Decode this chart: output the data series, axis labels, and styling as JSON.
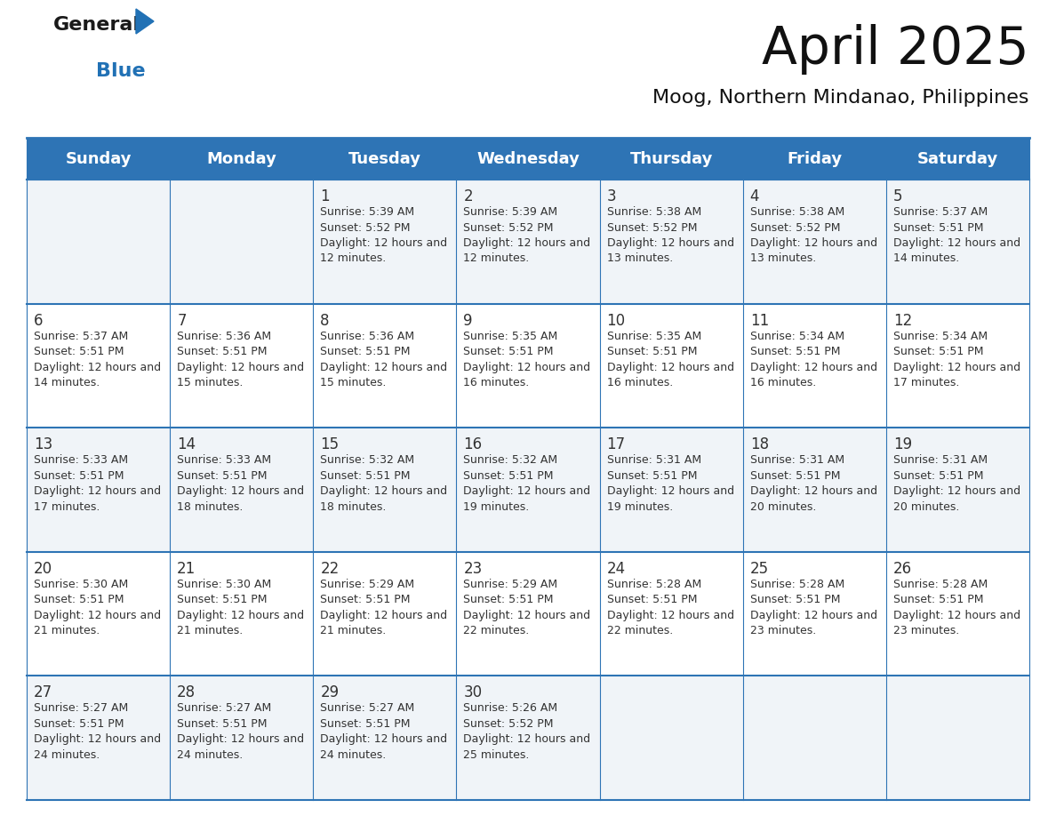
{
  "title": "April 2025",
  "subtitle": "Moog, Northern Mindanao, Philippines",
  "days_of_week": [
    "Sunday",
    "Monday",
    "Tuesday",
    "Wednesday",
    "Thursday",
    "Friday",
    "Saturday"
  ],
  "header_bg": "#2E74B5",
  "header_text_color": "#FFFFFF",
  "cell_border_color": "#2E74B5",
  "text_color": "#333333",
  "logo_black": "#1a1a1a",
  "logo_blue": "#2171B5",
  "fig_width": 11.88,
  "fig_height": 9.18,
  "dpi": 100,
  "calendar_data": [
    [
      {
        "day": "",
        "sunrise": "",
        "sunset": "",
        "daylight": ""
      },
      {
        "day": "",
        "sunrise": "",
        "sunset": "",
        "daylight": ""
      },
      {
        "day": "1",
        "sunrise": "5:39 AM",
        "sunset": "5:52 PM",
        "daylight": "12 hours and 12 minutes."
      },
      {
        "day": "2",
        "sunrise": "5:39 AM",
        "sunset": "5:52 PM",
        "daylight": "12 hours and 12 minutes."
      },
      {
        "day": "3",
        "sunrise": "5:38 AM",
        "sunset": "5:52 PM",
        "daylight": "12 hours and 13 minutes."
      },
      {
        "day": "4",
        "sunrise": "5:38 AM",
        "sunset": "5:52 PM",
        "daylight": "12 hours and 13 minutes."
      },
      {
        "day": "5",
        "sunrise": "5:37 AM",
        "sunset": "5:51 PM",
        "daylight": "12 hours and 14 minutes."
      }
    ],
    [
      {
        "day": "6",
        "sunrise": "5:37 AM",
        "sunset": "5:51 PM",
        "daylight": "12 hours and 14 minutes."
      },
      {
        "day": "7",
        "sunrise": "5:36 AM",
        "sunset": "5:51 PM",
        "daylight": "12 hours and 15 minutes."
      },
      {
        "day": "8",
        "sunrise": "5:36 AM",
        "sunset": "5:51 PM",
        "daylight": "12 hours and 15 minutes."
      },
      {
        "day": "9",
        "sunrise": "5:35 AM",
        "sunset": "5:51 PM",
        "daylight": "12 hours and 16 minutes."
      },
      {
        "day": "10",
        "sunrise": "5:35 AM",
        "sunset": "5:51 PM",
        "daylight": "12 hours and 16 minutes."
      },
      {
        "day": "11",
        "sunrise": "5:34 AM",
        "sunset": "5:51 PM",
        "daylight": "12 hours and 16 minutes."
      },
      {
        "day": "12",
        "sunrise": "5:34 AM",
        "sunset": "5:51 PM",
        "daylight": "12 hours and 17 minutes."
      }
    ],
    [
      {
        "day": "13",
        "sunrise": "5:33 AM",
        "sunset": "5:51 PM",
        "daylight": "12 hours and 17 minutes."
      },
      {
        "day": "14",
        "sunrise": "5:33 AM",
        "sunset": "5:51 PM",
        "daylight": "12 hours and 18 minutes."
      },
      {
        "day": "15",
        "sunrise": "5:32 AM",
        "sunset": "5:51 PM",
        "daylight": "12 hours and 18 minutes."
      },
      {
        "day": "16",
        "sunrise": "5:32 AM",
        "sunset": "5:51 PM",
        "daylight": "12 hours and 19 minutes."
      },
      {
        "day": "17",
        "sunrise": "5:31 AM",
        "sunset": "5:51 PM",
        "daylight": "12 hours and 19 minutes."
      },
      {
        "day": "18",
        "sunrise": "5:31 AM",
        "sunset": "5:51 PM",
        "daylight": "12 hours and 20 minutes."
      },
      {
        "day": "19",
        "sunrise": "5:31 AM",
        "sunset": "5:51 PM",
        "daylight": "12 hours and 20 minutes."
      }
    ],
    [
      {
        "day": "20",
        "sunrise": "5:30 AM",
        "sunset": "5:51 PM",
        "daylight": "12 hours and 21 minutes."
      },
      {
        "day": "21",
        "sunrise": "5:30 AM",
        "sunset": "5:51 PM",
        "daylight": "12 hours and 21 minutes."
      },
      {
        "day": "22",
        "sunrise": "5:29 AM",
        "sunset": "5:51 PM",
        "daylight": "12 hours and 21 minutes."
      },
      {
        "day": "23",
        "sunrise": "5:29 AM",
        "sunset": "5:51 PM",
        "daylight": "12 hours and 22 minutes."
      },
      {
        "day": "24",
        "sunrise": "5:28 AM",
        "sunset": "5:51 PM",
        "daylight": "12 hours and 22 minutes."
      },
      {
        "day": "25",
        "sunrise": "5:28 AM",
        "sunset": "5:51 PM",
        "daylight": "12 hours and 23 minutes."
      },
      {
        "day": "26",
        "sunrise": "5:28 AM",
        "sunset": "5:51 PM",
        "daylight": "12 hours and 23 minutes."
      }
    ],
    [
      {
        "day": "27",
        "sunrise": "5:27 AM",
        "sunset": "5:51 PM",
        "daylight": "12 hours and 24 minutes."
      },
      {
        "day": "28",
        "sunrise": "5:27 AM",
        "sunset": "5:51 PM",
        "daylight": "12 hours and 24 minutes."
      },
      {
        "day": "29",
        "sunrise": "5:27 AM",
        "sunset": "5:51 PM",
        "daylight": "12 hours and 24 minutes."
      },
      {
        "day": "30",
        "sunrise": "5:26 AM",
        "sunset": "5:52 PM",
        "daylight": "12 hours and 25 minutes."
      },
      {
        "day": "",
        "sunrise": "",
        "sunset": "",
        "daylight": ""
      },
      {
        "day": "",
        "sunrise": "",
        "sunset": "",
        "daylight": ""
      },
      {
        "day": "",
        "sunrise": "",
        "sunset": "",
        "daylight": ""
      }
    ]
  ]
}
